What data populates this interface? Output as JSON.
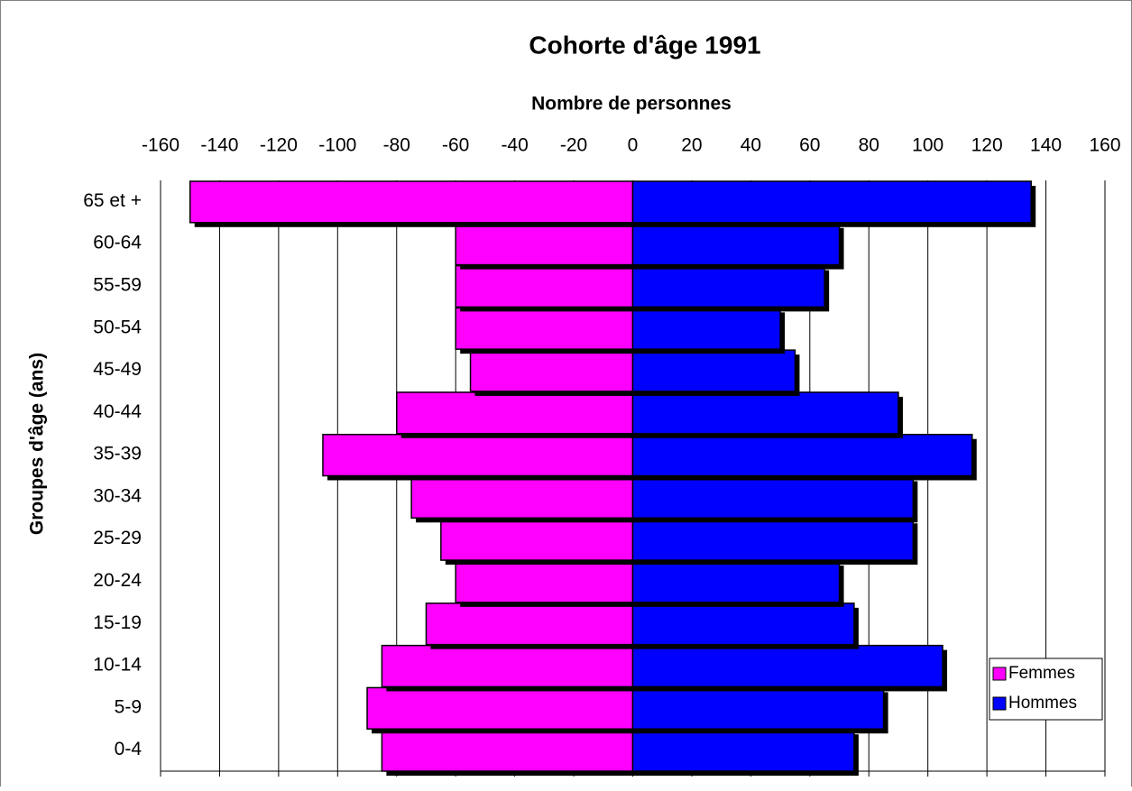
{
  "chart_data": {
    "type": "bar",
    "orientation": "horizontal",
    "stacked": "diverging",
    "title": "Cohorte d'âge 1991",
    "x_label": "Nombre de personnes",
    "y_label": "Groupes d'âge (ans)",
    "categories": [
      "0-4",
      "5-9",
      "10-14",
      "15-19",
      "20-24",
      "25-29",
      "30-34",
      "35-39",
      "40-44",
      "45-49",
      "50-54",
      "55-59",
      "60-64",
      "65 et +"
    ],
    "series": [
      {
        "name": "Femmes",
        "color": "#ff00ff",
        "values": [
          -85,
          -90,
          -85,
          -70,
          -60,
          -65,
          -75,
          -105,
          -80,
          -55,
          -60,
          -60,
          -60,
          -150
        ]
      },
      {
        "name": "Hommes",
        "color": "#0000ff",
        "values": [
          75,
          85,
          105,
          75,
          70,
          95,
          95,
          115,
          90,
          55,
          50,
          65,
          70,
          135
        ]
      }
    ],
    "xlim": [
      -160,
      160
    ],
    "xticks": [
      -160,
      -140,
      -120,
      -100,
      -80,
      -60,
      -40,
      -20,
      0,
      20,
      40,
      60,
      80,
      100,
      120,
      140,
      160
    ],
    "grid": true,
    "legend_position": "lower right"
  }
}
